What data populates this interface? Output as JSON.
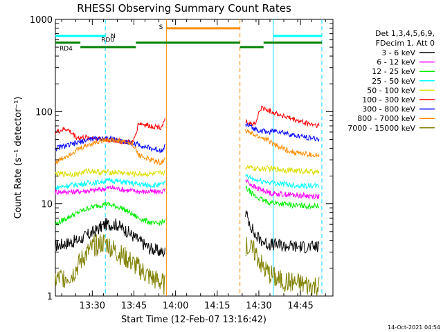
{
  "chart_data": {
    "type": "line",
    "title": "RHESSI Observing Summary Count Rates",
    "xlabel": "Start Time (12-Feb-07 13:16:42)",
    "ylabel": "Count Rate (s⁻¹ detector⁻¹)",
    "x_unit": "minutes after 13:16:42",
    "xlim": [
      0,
      100
    ],
    "ylim": [
      1,
      1000
    ],
    "yscale": "log",
    "x_ticks": [
      {
        "x": 13.3,
        "label": "13:30"
      },
      {
        "x": 28.3,
        "label": "13:45"
      },
      {
        "x": 43.3,
        "label": "14:00"
      },
      {
        "x": 58.3,
        "label": "14:15"
      },
      {
        "x": 73.3,
        "label": "14:30"
      },
      {
        "x": 88.3,
        "label": "14:45"
      }
    ],
    "y_ticks": [
      {
        "y": 1,
        "label": "1"
      },
      {
        "y": 10,
        "label": "10"
      },
      {
        "y": 100,
        "label": "100"
      },
      {
        "y": 1000,
        "label": "1000"
      }
    ],
    "legend_header": [
      "Det 1,3,4,5,6,9,",
      "FDecim 1, Att 0"
    ],
    "legend_placement": "right",
    "series": [
      {
        "name": "3 - 6 keV",
        "color": "#000000",
        "seg1": [
          [
            0,
            3.5
          ],
          [
            8,
            4
          ],
          [
            14,
            5
          ],
          [
            18,
            6
          ],
          [
            22,
            6
          ],
          [
            26,
            5
          ],
          [
            30,
            4
          ],
          [
            34,
            3.3
          ],
          [
            38,
            3
          ],
          [
            39.5,
            3
          ]
        ],
        "seg2": [
          [
            68.5,
            8
          ],
          [
            72,
            4.5
          ],
          [
            76,
            3.7
          ],
          [
            82,
            3.5
          ],
          [
            90,
            3.4
          ],
          [
            95,
            3.4
          ]
        ]
      },
      {
        "name": "6 - 12 keV",
        "color": "#ff00ff",
        "seg1": [
          [
            0,
            13.5
          ],
          [
            6,
            13.5
          ],
          [
            14,
            14
          ],
          [
            20,
            15
          ],
          [
            26,
            14
          ],
          [
            32,
            13.5
          ],
          [
            38,
            13.5
          ],
          [
            39.5,
            14
          ]
        ],
        "seg2": [
          [
            68.5,
            18
          ],
          [
            72,
            15
          ],
          [
            78,
            13
          ],
          [
            85,
            12.5
          ],
          [
            95,
            12
          ]
        ]
      },
      {
        "name": "12 - 25 keV",
        "color": "#00ee00",
        "seg1": [
          [
            0,
            6
          ],
          [
            6,
            7.5
          ],
          [
            12,
            9
          ],
          [
            18,
            10
          ],
          [
            24,
            9
          ],
          [
            30,
            7
          ],
          [
            36,
            6
          ],
          [
            39.5,
            6.5
          ]
        ],
        "seg2": [
          [
            68.5,
            15
          ],
          [
            72,
            12
          ],
          [
            76,
            10.5
          ],
          [
            82,
            10
          ],
          [
            88,
            9.5
          ],
          [
            95,
            9.5
          ]
        ]
      },
      {
        "name": "25 - 50 keV",
        "color": "#00ffff",
        "seg1": [
          [
            0,
            15
          ],
          [
            6,
            16
          ],
          [
            14,
            17
          ],
          [
            20,
            18
          ],
          [
            26,
            17
          ],
          [
            32,
            16
          ],
          [
            38,
            16
          ],
          [
            39.5,
            17
          ]
        ],
        "seg2": [
          [
            68.5,
            20
          ],
          [
            72,
            18
          ],
          [
            78,
            17
          ],
          [
            85,
            16
          ],
          [
            95,
            15.5
          ]
        ]
      },
      {
        "name": "50 - 100 keV",
        "color": "#dddd00",
        "seg1": [
          [
            0,
            21
          ],
          [
            8,
            21
          ],
          [
            12,
            23
          ],
          [
            16,
            22
          ],
          [
            22,
            22
          ],
          [
            28,
            21
          ],
          [
            36,
            21
          ],
          [
            39.5,
            22
          ]
        ],
        "seg2": [
          [
            68.5,
            25
          ],
          [
            72,
            24
          ],
          [
            78,
            24
          ],
          [
            85,
            23
          ],
          [
            95,
            22
          ]
        ]
      },
      {
        "name": "100 - 300 keV",
        "color": "#ff0000",
        "seg1": [
          [
            0,
            60
          ],
          [
            4,
            65
          ],
          [
            8,
            52
          ],
          [
            14,
            52
          ],
          [
            22,
            48
          ],
          [
            28,
            46
          ],
          [
            30,
            75
          ],
          [
            34,
            70
          ],
          [
            38,
            68
          ],
          [
            39.5,
            80
          ]
        ],
        "seg2": [
          [
            68.5,
            78
          ],
          [
            72,
            72
          ],
          [
            74,
            110
          ],
          [
            78,
            100
          ],
          [
            84,
            85
          ],
          [
            90,
            75
          ],
          [
            95,
            70
          ]
        ]
      },
      {
        "name": "300 - 800 keV",
        "color": "#0000ff",
        "seg1": [
          [
            0,
            40
          ],
          [
            6,
            44
          ],
          [
            12,
            50
          ],
          [
            18,
            52
          ],
          [
            24,
            48
          ],
          [
            28,
            45
          ],
          [
            30,
            44
          ],
          [
            34,
            40
          ],
          [
            38,
            38
          ],
          [
            39.5,
            42
          ]
        ],
        "seg2": [
          [
            68.5,
            72
          ],
          [
            72,
            65
          ],
          [
            76,
            60
          ],
          [
            80,
            62
          ],
          [
            86,
            55
          ],
          [
            92,
            52
          ],
          [
            95,
            50
          ]
        ]
      },
      {
        "name": "800 - 7000 keV",
        "color": "#ff8c00",
        "seg1": [
          [
            0,
            28
          ],
          [
            6,
            36
          ],
          [
            12,
            44
          ],
          [
            18,
            50
          ],
          [
            24,
            48
          ],
          [
            28,
            44
          ],
          [
            30,
            34
          ],
          [
            34,
            30
          ],
          [
            38,
            28
          ],
          [
            39.5,
            30
          ]
        ],
        "seg2": [
          [
            68.5,
            62
          ],
          [
            72,
            55
          ],
          [
            76,
            50
          ],
          [
            80,
            42
          ],
          [
            86,
            36
          ],
          [
            92,
            34
          ],
          [
            95,
            33
          ]
        ]
      },
      {
        "name": "7000 - 15000 keV",
        "color": "#808000",
        "seg1": [
          [
            0,
            1.5
          ],
          [
            6,
            1.7
          ],
          [
            10,
            2.6
          ],
          [
            14,
            3.5
          ],
          [
            18,
            3.8
          ],
          [
            22,
            3
          ],
          [
            26,
            2.5
          ],
          [
            30,
            2
          ],
          [
            34,
            1.6
          ],
          [
            38,
            1.4
          ],
          [
            39.5,
            1.3
          ]
        ],
        "seg2": [
          [
            68.5,
            3.5
          ],
          [
            72,
            3
          ],
          [
            75,
            2
          ],
          [
            80,
            1.5
          ],
          [
            86,
            1.4
          ],
          [
            92,
            1.3
          ],
          [
            95,
            1.3
          ]
        ]
      }
    ],
    "vertical_lines": [
      {
        "x": 18,
        "color": "#00d8ff",
        "style": "dashed"
      },
      {
        "x": 40,
        "color": "#ff8c00",
        "style": "solid"
      },
      {
        "x": 66.5,
        "color": "#ff8c00",
        "style": "dashed"
      },
      {
        "x": 78.5,
        "color": "#00d8ff",
        "style": "solid"
      },
      {
        "x": 96,
        "color": "#00d8ff",
        "style": "dashed"
      }
    ],
    "state_bars": [
      {
        "label": "N",
        "color": "#00ffff",
        "y": 660,
        "segments": [
          [
            0,
            18
          ],
          [
            78.5,
            96
          ]
        ]
      },
      {
        "label": "S",
        "color": "#ff8c00",
        "y": 800,
        "segments": [
          [
            40,
            66.5
          ]
        ]
      },
      {
        "label": "RD0",
        "color": "#008000",
        "y": 560,
        "segments": [
          [
            0,
            9
          ],
          [
            29,
            66.5
          ],
          [
            75,
            96
          ]
        ]
      },
      {
        "label": "RD4",
        "color": "#008000",
        "y": 500,
        "segments": [
          [
            9,
            29
          ],
          [
            66.5,
            75
          ]
        ]
      }
    ],
    "footer_timestamp": "14-Oct-2021 04:54"
  }
}
